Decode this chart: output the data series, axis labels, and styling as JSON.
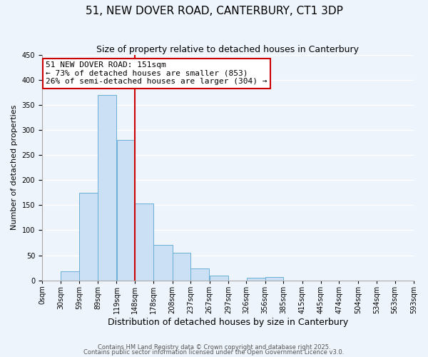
{
  "title": "51, NEW DOVER ROAD, CANTERBURY, CT1 3DP",
  "subtitle": "Size of property relative to detached houses in Canterbury",
  "xlabel": "Distribution of detached houses by size in Canterbury",
  "ylabel": "Number of detached properties",
  "bar_color": "#cce0f5",
  "bar_edge_color": "#6aaed6",
  "background_color": "#eef4fc",
  "bin_edges": [
    0,
    30,
    59,
    89,
    119,
    148,
    178,
    208,
    237,
    267,
    297,
    326,
    356,
    385,
    415,
    445,
    474,
    504,
    534,
    563,
    593
  ],
  "bin_labels": [
    "0sqm",
    "30sqm",
    "59sqm",
    "89sqm",
    "119sqm",
    "148sqm",
    "178sqm",
    "208sqm",
    "237sqm",
    "267sqm",
    "297sqm",
    "326sqm",
    "356sqm",
    "385sqm",
    "415sqm",
    "445sqm",
    "474sqm",
    "504sqm",
    "534sqm",
    "563sqm",
    "593sqm"
  ],
  "counts": [
    0,
    18,
    175,
    370,
    280,
    153,
    71,
    55,
    23,
    9,
    0,
    5,
    6,
    0,
    0,
    0,
    0,
    0,
    0,
    0
  ],
  "vline_x": 148,
  "vline_color": "#cc0000",
  "ylim": [
    0,
    450
  ],
  "yticks": [
    0,
    50,
    100,
    150,
    200,
    250,
    300,
    350,
    400,
    450
  ],
  "annotation_title": "51 NEW DOVER ROAD: 151sqm",
  "annotation_line1": "← 73% of detached houses are smaller (853)",
  "annotation_line2": "26% of semi-detached houses are larger (304) →",
  "footer1": "Contains HM Land Registry data © Crown copyright and database right 2025.",
  "footer2": "Contains public sector information licensed under the Open Government Licence v3.0.",
  "grid_color": "#ffffff",
  "title_fontsize": 11,
  "subtitle_fontsize": 9,
  "xlabel_fontsize": 9,
  "ylabel_fontsize": 8,
  "annotation_fontsize": 8,
  "tick_fontsize": 7,
  "footer_fontsize": 6
}
